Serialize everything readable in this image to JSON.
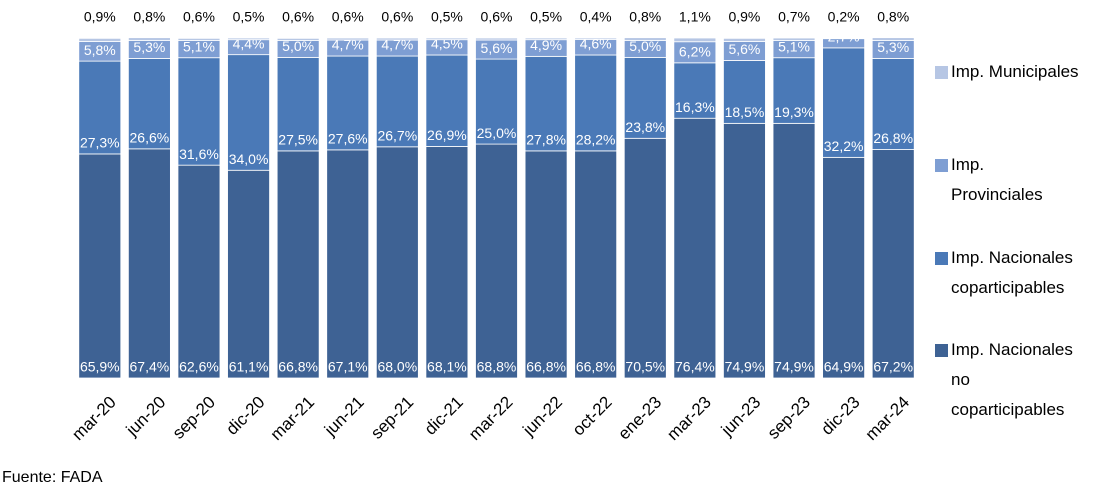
{
  "chart_data": {
    "type": "stacked-bar",
    "categories": [
      "mar-20",
      "jun-20",
      "sep-20",
      "dic-20",
      "mar-21",
      "jun-21",
      "sep-21",
      "dic-21",
      "mar-22",
      "jun-22",
      "oct-22",
      "ene-23",
      "mar-23",
      "jun-23",
      "sep-23",
      "dic-23",
      "mar-24"
    ],
    "ylim": [
      0,
      100
    ],
    "series": [
      {
        "name": "Imp. Nacionales no coparticipables",
        "color": "#3e6294",
        "values": [
          65.9,
          67.4,
          62.6,
          61.1,
          66.8,
          67.1,
          68.0,
          68.1,
          68.8,
          66.8,
          66.8,
          70.5,
          76.4,
          74.9,
          74.9,
          64.9,
          67.2
        ],
        "value_labels": [
          "65,9%",
          "67,4%",
          "62,6%",
          "61,1%",
          "66,8%",
          "67,1%",
          "68,0%",
          "68,1%",
          "68,8%",
          "66,8%",
          "66,8%",
          "70,5%",
          "76,4%",
          "74,9%",
          "74,9%",
          "64,9%",
          "67,2%"
        ]
      },
      {
        "name": "Imp. Nacionales coparticipables",
        "color": "#4a79b7",
        "values": [
          27.3,
          26.6,
          31.6,
          34.0,
          27.5,
          27.6,
          26.7,
          26.9,
          25.0,
          27.8,
          28.2,
          23.8,
          16.3,
          18.5,
          19.3,
          32.2,
          26.8
        ],
        "value_labels": [
          "27,3%",
          "26,6%",
          "31,6%",
          "34,0%",
          "27,5%",
          "27,6%",
          "26,7%",
          "26,9%",
          "25,0%",
          "27,8%",
          "28,2%",
          "23,8%",
          "16,3%",
          "18,5%",
          "19,3%",
          "32,2%",
          "26,8%"
        ]
      },
      {
        "name": "Imp. Provinciales",
        "color": "#7e9ed3",
        "values": [
          5.8,
          5.3,
          5.1,
          4.4,
          5.0,
          4.7,
          4.7,
          4.5,
          5.6,
          4.9,
          4.6,
          5.0,
          6.2,
          5.6,
          5.1,
          2.7,
          5.3
        ],
        "value_labels": [
          "5,8%",
          "5,3%",
          "5,1%",
          "4,4%",
          "5,0%",
          "4,7%",
          "4,7%",
          "4,5%",
          "5,6%",
          "4,9%",
          "4,6%",
          "5,0%",
          "6,2%",
          "5,6%",
          "5,1%",
          "2,7%",
          "5,3%"
        ]
      },
      {
        "name": "Imp. Municipales",
        "color": "#b6c6e4",
        "values": [
          0.9,
          0.8,
          0.6,
          0.5,
          0.6,
          0.6,
          0.6,
          0.5,
          0.6,
          0.5,
          0.4,
          0.8,
          1.1,
          0.9,
          0.7,
          0.2,
          0.8
        ],
        "value_labels": [
          "0,9%",
          "0,8%",
          "0,6%",
          "0,5%",
          "0,6%",
          "0,6%",
          "0,6%",
          "0,5%",
          "0,6%",
          "0,5%",
          "0,4%",
          "0,8%",
          "1,1%",
          "0,9%",
          "0,7%",
          "0,2%",
          "0,8%"
        ]
      }
    ],
    "legend": "right",
    "source": "Fuente: FADA"
  }
}
